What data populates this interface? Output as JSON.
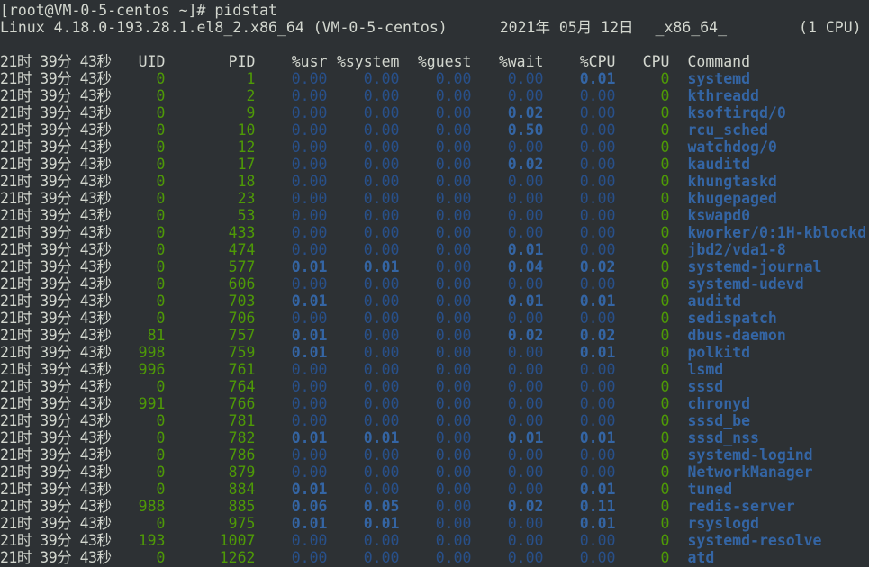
{
  "terminal": {
    "prompt": "[root@VM-0-5-centos ~]# ",
    "command": "pidstat",
    "sysinfo": {
      "kernel": "Linux 4.18.0-193.28.1.el8_2.x86_64 (VM-0-5-centos)",
      "date": "2021年 05月 12日",
      "arch": "_x86_64_",
      "cpus": "(1 CPU)"
    },
    "colors": {
      "background": "#2d3134",
      "text": "#d3d7cf",
      "green": "#4e9a06",
      "blue": "#3465a4"
    },
    "headers": {
      "time": "21时 39分 43秒",
      "uid": "UID",
      "pid": "PID",
      "usr": "%usr",
      "system": "%system",
      "guest": "%guest",
      "wait": "%wait",
      "cpu_pct": "%CPU",
      "cpu": "CPU",
      "command": "Command"
    },
    "rows": [
      {
        "time": "21时 39分 43秒",
        "uid": "0",
        "pid": "1",
        "usr": "0.00",
        "system": "0.00",
        "guest": "0.00",
        "wait": "0.00",
        "cpu_pct": "0.01",
        "cpu": "0",
        "command": "systemd"
      },
      {
        "time": "21时 39分 43秒",
        "uid": "0",
        "pid": "2",
        "usr": "0.00",
        "system": "0.00",
        "guest": "0.00",
        "wait": "0.00",
        "cpu_pct": "0.00",
        "cpu": "0",
        "command": "kthreadd"
      },
      {
        "time": "21时 39分 43秒",
        "uid": "0",
        "pid": "9",
        "usr": "0.00",
        "system": "0.00",
        "guest": "0.00",
        "wait": "0.02",
        "cpu_pct": "0.00",
        "cpu": "0",
        "command": "ksoftirqd/0"
      },
      {
        "time": "21时 39分 43秒",
        "uid": "0",
        "pid": "10",
        "usr": "0.00",
        "system": "0.00",
        "guest": "0.00",
        "wait": "0.50",
        "cpu_pct": "0.00",
        "cpu": "0",
        "command": "rcu_sched"
      },
      {
        "time": "21时 39分 43秒",
        "uid": "0",
        "pid": "12",
        "usr": "0.00",
        "system": "0.00",
        "guest": "0.00",
        "wait": "0.00",
        "cpu_pct": "0.00",
        "cpu": "0",
        "command": "watchdog/0"
      },
      {
        "time": "21时 39分 43秒",
        "uid": "0",
        "pid": "17",
        "usr": "0.00",
        "system": "0.00",
        "guest": "0.00",
        "wait": "0.02",
        "cpu_pct": "0.00",
        "cpu": "0",
        "command": "kauditd"
      },
      {
        "time": "21时 39分 43秒",
        "uid": "0",
        "pid": "18",
        "usr": "0.00",
        "system": "0.00",
        "guest": "0.00",
        "wait": "0.00",
        "cpu_pct": "0.00",
        "cpu": "0",
        "command": "khungtaskd"
      },
      {
        "time": "21时 39分 43秒",
        "uid": "0",
        "pid": "23",
        "usr": "0.00",
        "system": "0.00",
        "guest": "0.00",
        "wait": "0.00",
        "cpu_pct": "0.00",
        "cpu": "0",
        "command": "khugepaged"
      },
      {
        "time": "21时 39分 43秒",
        "uid": "0",
        "pid": "53",
        "usr": "0.00",
        "system": "0.00",
        "guest": "0.00",
        "wait": "0.00",
        "cpu_pct": "0.00",
        "cpu": "0",
        "command": "kswapd0"
      },
      {
        "time": "21时 39分 43秒",
        "uid": "0",
        "pid": "433",
        "usr": "0.00",
        "system": "0.00",
        "guest": "0.00",
        "wait": "0.00",
        "cpu_pct": "0.00",
        "cpu": "0",
        "command": "kworker/0:1H-kblockd"
      },
      {
        "time": "21时 39分 43秒",
        "uid": "0",
        "pid": "474",
        "usr": "0.00",
        "system": "0.00",
        "guest": "0.00",
        "wait": "0.01",
        "cpu_pct": "0.00",
        "cpu": "0",
        "command": "jbd2/vda1-8"
      },
      {
        "time": "21时 39分 43秒",
        "uid": "0",
        "pid": "577",
        "usr": "0.01",
        "system": "0.01",
        "guest": "0.00",
        "wait": "0.04",
        "cpu_pct": "0.02",
        "cpu": "0",
        "command": "systemd-journal"
      },
      {
        "time": "21时 39分 43秒",
        "uid": "0",
        "pid": "606",
        "usr": "0.00",
        "system": "0.00",
        "guest": "0.00",
        "wait": "0.00",
        "cpu_pct": "0.00",
        "cpu": "0",
        "command": "systemd-udevd"
      },
      {
        "time": "21时 39分 43秒",
        "uid": "0",
        "pid": "703",
        "usr": "0.01",
        "system": "0.00",
        "guest": "0.00",
        "wait": "0.01",
        "cpu_pct": "0.01",
        "cpu": "0",
        "command": "auditd"
      },
      {
        "time": "21时 39分 43秒",
        "uid": "0",
        "pid": "706",
        "usr": "0.00",
        "system": "0.00",
        "guest": "0.00",
        "wait": "0.00",
        "cpu_pct": "0.00",
        "cpu": "0",
        "command": "sedispatch"
      },
      {
        "time": "21时 39分 43秒",
        "uid": "81",
        "pid": "757",
        "usr": "0.01",
        "system": "0.00",
        "guest": "0.00",
        "wait": "0.02",
        "cpu_pct": "0.02",
        "cpu": "0",
        "command": "dbus-daemon"
      },
      {
        "time": "21时 39分 43秒",
        "uid": "998",
        "pid": "759",
        "usr": "0.01",
        "system": "0.00",
        "guest": "0.00",
        "wait": "0.00",
        "cpu_pct": "0.01",
        "cpu": "0",
        "command": "polkitd"
      },
      {
        "time": "21时 39分 43秒",
        "uid": "996",
        "pid": "761",
        "usr": "0.00",
        "system": "0.00",
        "guest": "0.00",
        "wait": "0.00",
        "cpu_pct": "0.00",
        "cpu": "0",
        "command": "lsmd"
      },
      {
        "time": "21时 39分 43秒",
        "uid": "0",
        "pid": "764",
        "usr": "0.00",
        "system": "0.00",
        "guest": "0.00",
        "wait": "0.00",
        "cpu_pct": "0.00",
        "cpu": "0",
        "command": "sssd"
      },
      {
        "time": "21时 39分 43秒",
        "uid": "991",
        "pid": "766",
        "usr": "0.00",
        "system": "0.00",
        "guest": "0.00",
        "wait": "0.00",
        "cpu_pct": "0.00",
        "cpu": "0",
        "command": "chronyd"
      },
      {
        "time": "21时 39分 43秒",
        "uid": "0",
        "pid": "781",
        "usr": "0.00",
        "system": "0.00",
        "guest": "0.00",
        "wait": "0.00",
        "cpu_pct": "0.00",
        "cpu": "0",
        "command": "sssd_be"
      },
      {
        "time": "21时 39分 43秒",
        "uid": "0",
        "pid": "782",
        "usr": "0.01",
        "system": "0.01",
        "guest": "0.00",
        "wait": "0.01",
        "cpu_pct": "0.01",
        "cpu": "0",
        "command": "sssd_nss"
      },
      {
        "time": "21时 39分 43秒",
        "uid": "0",
        "pid": "786",
        "usr": "0.00",
        "system": "0.00",
        "guest": "0.00",
        "wait": "0.00",
        "cpu_pct": "0.00",
        "cpu": "0",
        "command": "systemd-logind"
      },
      {
        "time": "21时 39分 43秒",
        "uid": "0",
        "pid": "879",
        "usr": "0.00",
        "system": "0.00",
        "guest": "0.00",
        "wait": "0.00",
        "cpu_pct": "0.00",
        "cpu": "0",
        "command": "NetworkManager"
      },
      {
        "time": "21时 39分 43秒",
        "uid": "0",
        "pid": "884",
        "usr": "0.01",
        "system": "0.00",
        "guest": "0.00",
        "wait": "0.00",
        "cpu_pct": "0.01",
        "cpu": "0",
        "command": "tuned"
      },
      {
        "time": "21时 39分 43秒",
        "uid": "988",
        "pid": "885",
        "usr": "0.06",
        "system": "0.05",
        "guest": "0.00",
        "wait": "0.02",
        "cpu_pct": "0.11",
        "cpu": "0",
        "command": "redis-server"
      },
      {
        "time": "21时 39分 43秒",
        "uid": "0",
        "pid": "975",
        "usr": "0.01",
        "system": "0.01",
        "guest": "0.00",
        "wait": "0.00",
        "cpu_pct": "0.01",
        "cpu": "0",
        "command": "rsyslogd"
      },
      {
        "time": "21时 39分 43秒",
        "uid": "193",
        "pid": "1007",
        "usr": "0.00",
        "system": "0.00",
        "guest": "0.00",
        "wait": "0.00",
        "cpu_pct": "0.00",
        "cpu": "0",
        "command": "systemd-resolve"
      },
      {
        "time": "21时 39分 43秒",
        "uid": "0",
        "pid": "1262",
        "usr": "0.00",
        "system": "0.00",
        "guest": "0.00",
        "wait": "0.00",
        "cpu_pct": "0.00",
        "cpu": "0",
        "command": "atd"
      }
    ]
  }
}
